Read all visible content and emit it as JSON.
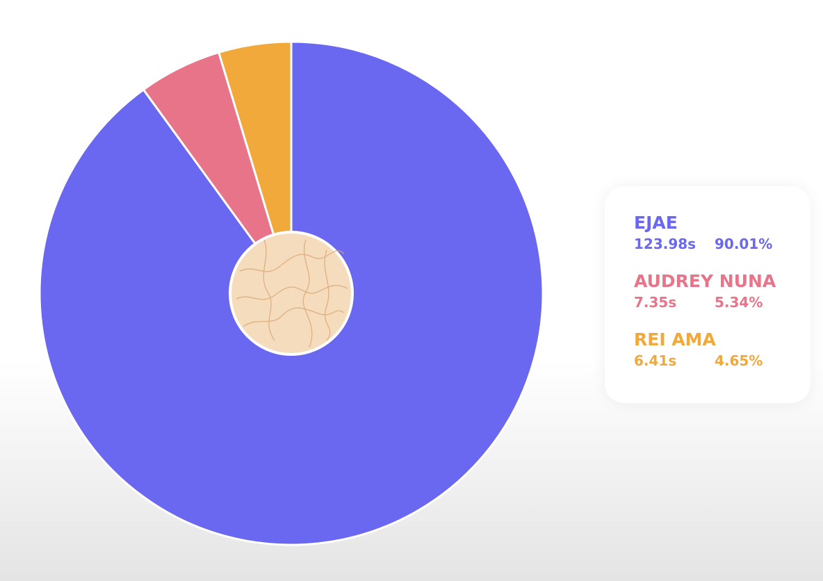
{
  "chart_data": {
    "type": "pie",
    "categories": [
      "EJAE",
      "AUDREY NUNA",
      "REI AMA"
    ],
    "values": [
      90.01,
      5.34,
      4.65
    ],
    "value_labels": [
      "90.01%",
      "5.34%",
      "4.65%"
    ],
    "durations": [
      123.98,
      7.35,
      6.41
    ],
    "duration_labels": [
      "123.98s",
      "7.35s",
      "6.41s"
    ],
    "colors": [
      "#6a67f0",
      "#e8748a",
      "#f0a93a"
    ]
  }
}
